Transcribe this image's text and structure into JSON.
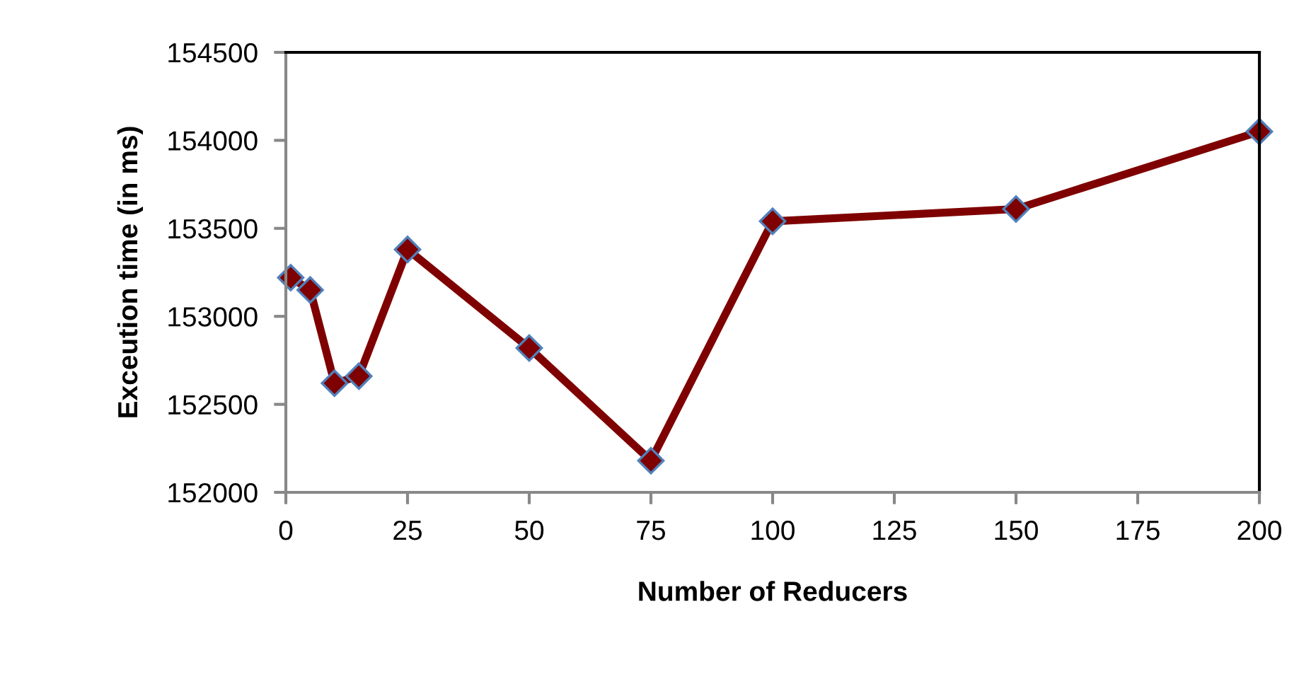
{
  "chart_data": {
    "type": "line",
    "xlabel": "Number of Reducers",
    "ylabel": "Exceution time (in ms)",
    "x": [
      1,
      5,
      10,
      15,
      25,
      50,
      75,
      100,
      150,
      200
    ],
    "series": [
      {
        "color": "#7f0000",
        "values": [
          153220,
          153150,
          152620,
          152660,
          153380,
          152820,
          152180,
          153540,
          153610,
          154050
        ]
      }
    ],
    "xlim": [
      0,
      200
    ],
    "xticks": [
      0,
      25,
      50,
      75,
      100,
      125,
      150,
      175,
      200
    ],
    "ylim": [
      152000,
      154500
    ],
    "yticks": [
      152000,
      152500,
      153000,
      153500,
      154000,
      154500
    ],
    "marker": "diamond",
    "line_style": "solid",
    "grid": false,
    "legend": false
  }
}
